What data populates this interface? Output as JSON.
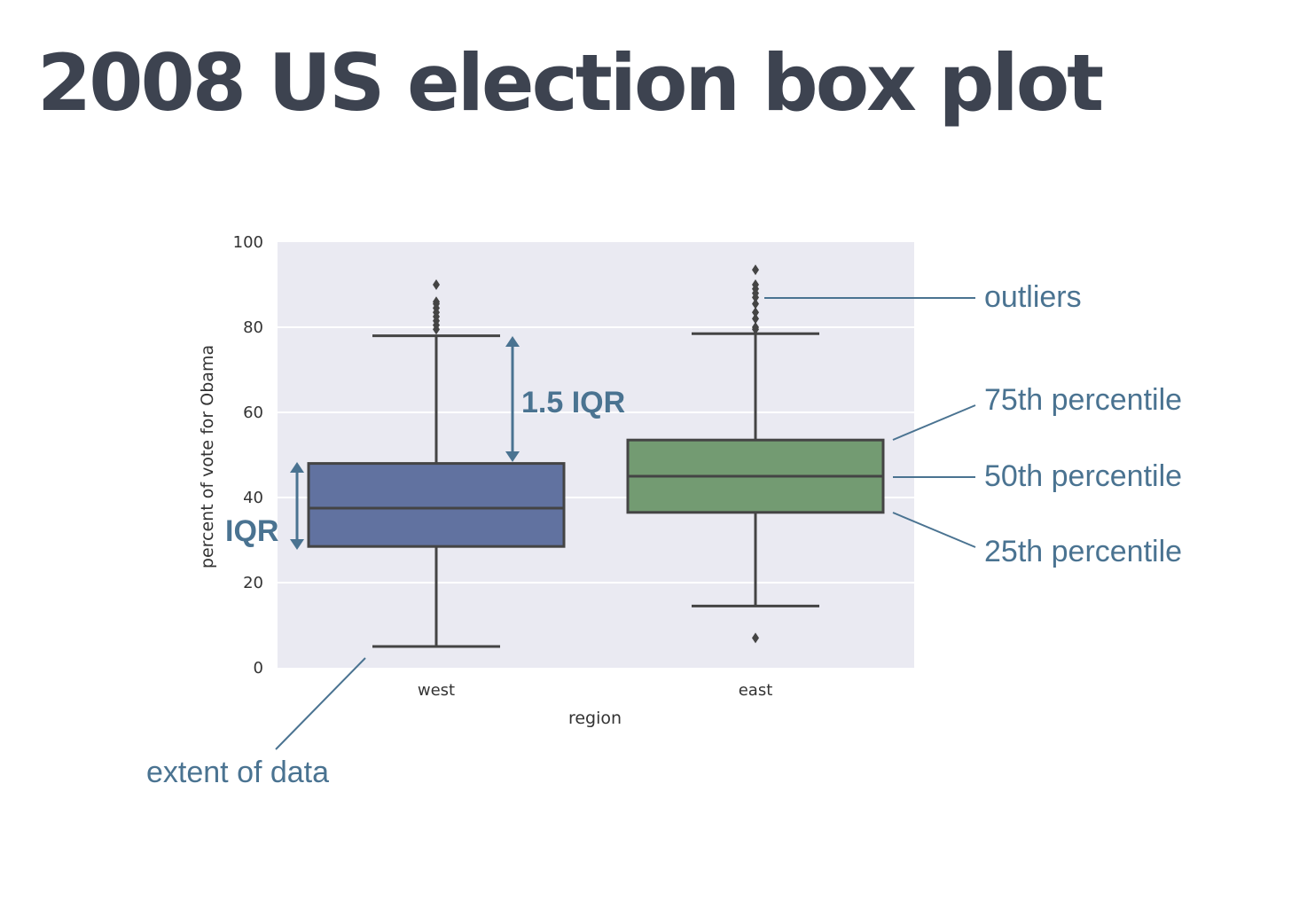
{
  "page": {
    "title": "2008 US election box plot"
  },
  "chart_data": {
    "type": "box",
    "title": "",
    "xlabel": "region",
    "ylabel": "percent of vote for Obama",
    "ylim": [
      0,
      100
    ],
    "yticks": [
      0,
      20,
      40,
      60,
      80,
      100
    ],
    "grid": true,
    "categories": [
      "west",
      "east"
    ],
    "boxes": [
      {
        "category": "west",
        "color": "#6172a0",
        "whisker_low": 5,
        "q1": 28.5,
        "median": 37.5,
        "q3": 48,
        "whisker_high": 78,
        "outliers": [
          79.5,
          80.5,
          81.5,
          82.5,
          83.5,
          84.5,
          85.5,
          86,
          90
        ]
      },
      {
        "category": "east",
        "color": "#739b72",
        "whisker_low": 14.5,
        "q1": 36.5,
        "median": 45,
        "q3": 53.5,
        "whisker_high": 78.5,
        "outliers": [
          7,
          79.5,
          80,
          82,
          83.5,
          85.5,
          87,
          88,
          89,
          90,
          93.5
        ]
      }
    ]
  },
  "annotations": {
    "outliers": "outliers",
    "p75": "75th percentile",
    "p50": "50th percentile",
    "p25": "25th percentile",
    "iqr": "IQR",
    "iqr15": "1.5 IQR",
    "extent": "extent of data"
  },
  "colors": {
    "plot_bg": "#eaeaf2",
    "annotation": "#4a7391",
    "box_edge": "#444444",
    "title": "#3d4350"
  }
}
